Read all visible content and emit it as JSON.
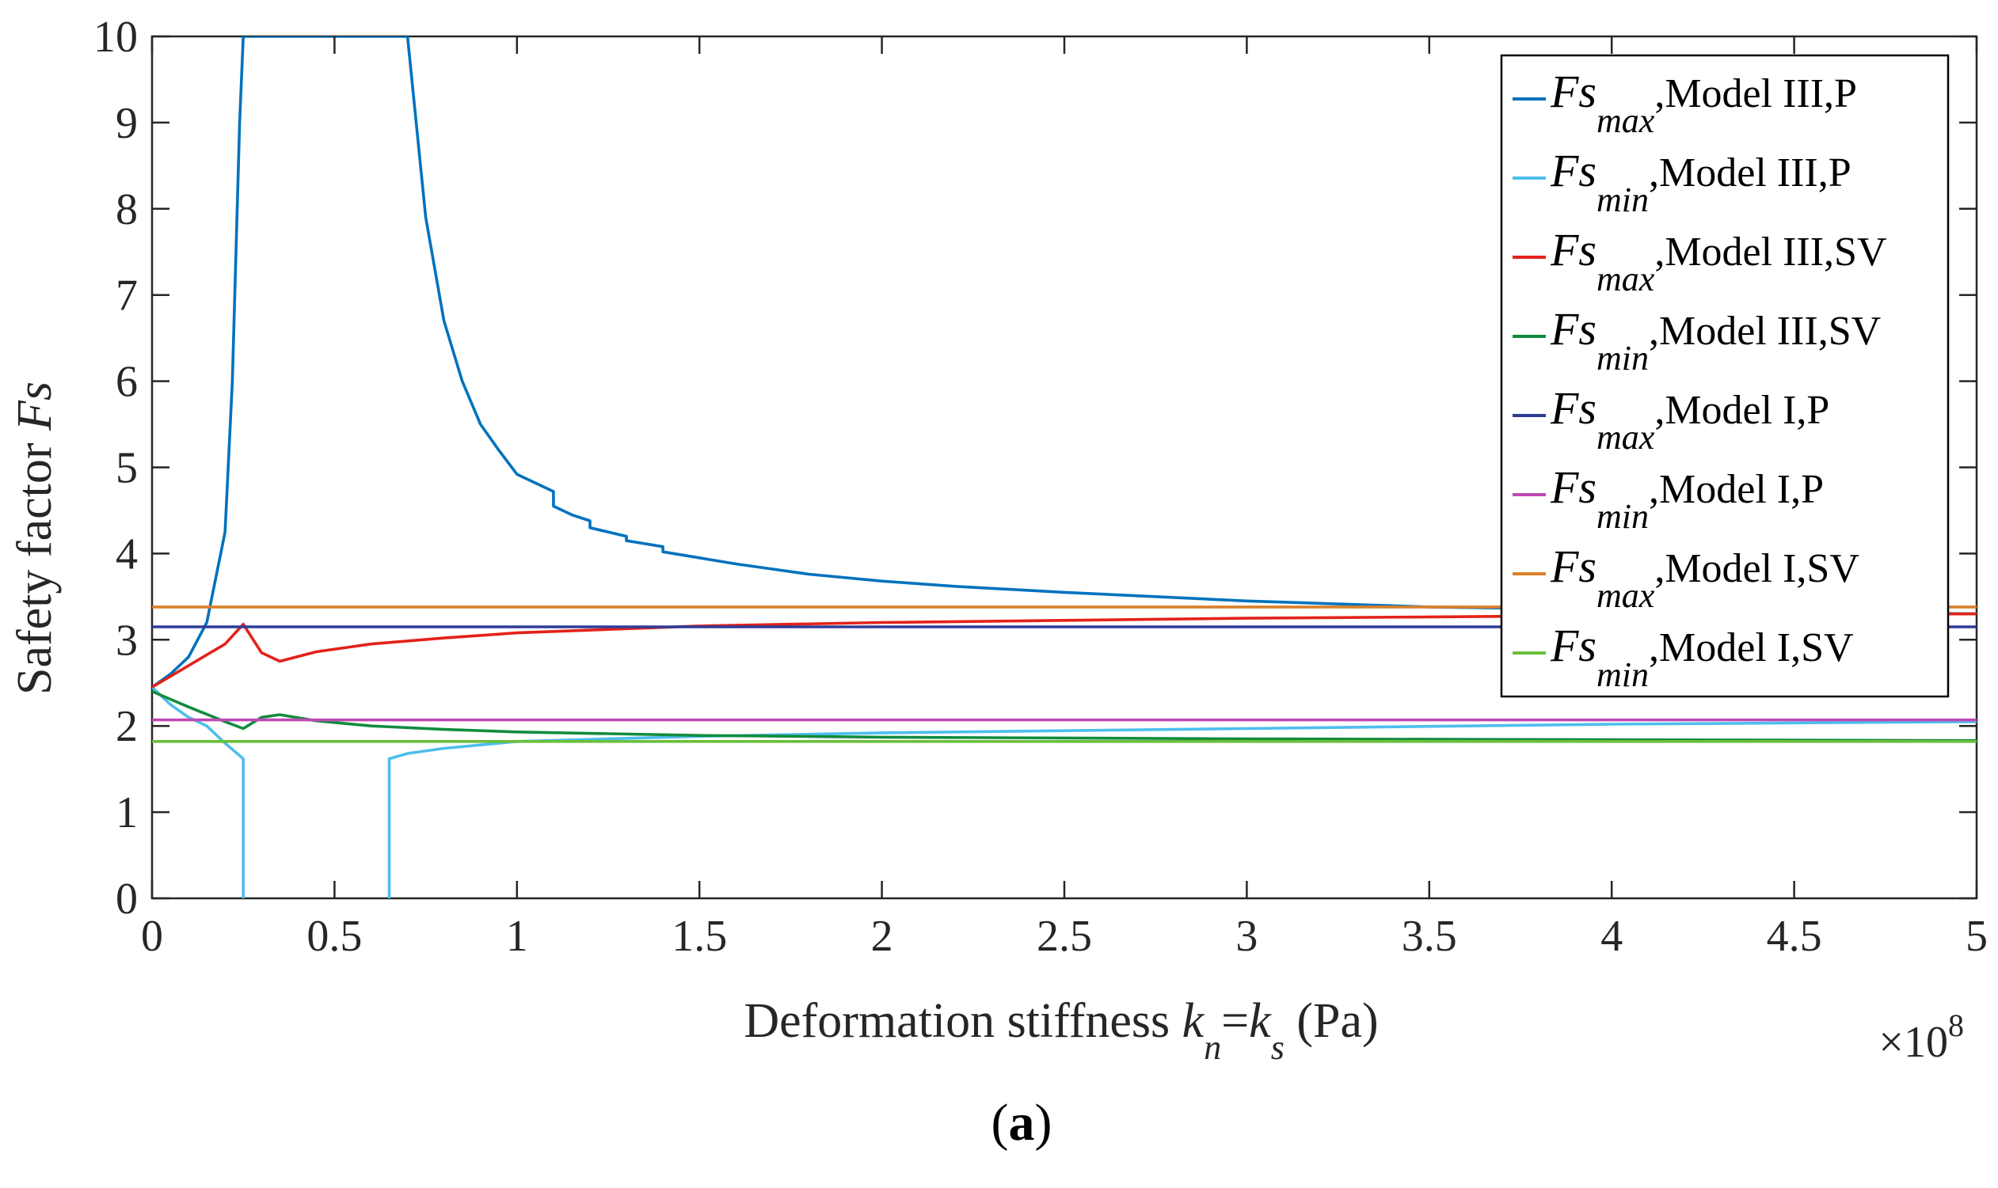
{
  "chart_data": {
    "type": "line",
    "title": "",
    "panel_label": {
      "open": "(",
      "letter": "a",
      "close": ")"
    },
    "xlabel": {
      "text": "Deformation stiffness ",
      "k1": "k",
      "sub1": "n",
      "eq": "=",
      "k2": "k",
      "sub2": "s",
      "unit": " (Pa)"
    },
    "ylabel": {
      "text": "Safety factor ",
      "var": "Fs"
    },
    "x_exponent": {
      "times": "×10",
      "power": "8"
    },
    "xlim": [
      0,
      5
    ],
    "ylim": [
      0,
      10
    ],
    "x_ticks": [
      0,
      0.5,
      1,
      1.5,
      2,
      2.5,
      3,
      3.5,
      4,
      4.5,
      5
    ],
    "x_tick_labels": [
      "0",
      "0.5",
      "1",
      "1.5",
      "2",
      "2.5",
      "3",
      "3.5",
      "4",
      "4.5",
      "5"
    ],
    "y_ticks": [
      0,
      1,
      2,
      3,
      4,
      5,
      6,
      7,
      8,
      9,
      10
    ],
    "y_tick_labels": [
      "0",
      "1",
      "2",
      "3",
      "4",
      "5",
      "6",
      "7",
      "8",
      "9",
      "10"
    ],
    "grid": false,
    "legend_position": "top-right",
    "series": [
      {
        "name": "Fs_max,Model III,P",
        "legend": {
          "var": "Fs",
          "sub": "max",
          "rest": ",Model III,P"
        },
        "color": "#0072BD",
        "x": [
          0,
          0.05,
          0.1,
          0.15,
          0.2,
          0.22,
          0.24,
          0.25,
          0.7,
          0.75,
          0.8,
          0.85,
          0.9,
          0.95,
          1.0,
          1.05,
          1.1,
          1.1,
          1.15,
          1.2,
          1.2,
          1.3,
          1.3,
          1.4,
          1.4,
          1.5,
          1.6,
          1.7,
          1.8,
          2.0,
          2.2,
          2.5,
          3.0,
          3.5,
          4.0,
          4.5,
          5.0
        ],
        "y": [
          2.45,
          2.6,
          2.8,
          3.2,
          4.25,
          6.0,
          9.0,
          10.0,
          10.0,
          7.9,
          6.7,
          6.0,
          5.5,
          5.2,
          4.92,
          4.82,
          4.72,
          4.55,
          4.45,
          4.38,
          4.3,
          4.2,
          4.15,
          4.08,
          4.02,
          3.95,
          3.88,
          3.82,
          3.76,
          3.68,
          3.62,
          3.55,
          3.45,
          3.38,
          3.35,
          3.32,
          3.3
        ]
      },
      {
        "name": "Fs_min,Model III,P",
        "legend": {
          "var": "Fs",
          "sub": "min",
          "rest": ",Model III,P"
        },
        "color": "#4DBEEE",
        "x": [
          0,
          0.05,
          0.1,
          0.15,
          0.2,
          0.25,
          0.25,
          null,
          0.65,
          0.65,
          0.7,
          0.8,
          0.9,
          1.0,
          1.5,
          2.0,
          3.0,
          4.0,
          5.0
        ],
        "y": [
          2.45,
          2.25,
          2.1,
          2.0,
          1.8,
          1.62,
          0,
          null,
          0,
          1.62,
          1.68,
          1.74,
          1.78,
          1.82,
          1.88,
          1.92,
          1.97,
          2.02,
          2.05
        ]
      },
      {
        "name": "Fs_max,Model III,SV",
        "legend": {
          "var": "Fs",
          "sub": "max",
          "rest": ",Model III,SV"
        },
        "color": "#E32219",
        "x": [
          0,
          0.1,
          0.2,
          0.25,
          0.3,
          0.35,
          0.45,
          0.6,
          0.8,
          1.0,
          1.5,
          2.0,
          3.0,
          4.0,
          5.0
        ],
        "y": [
          2.45,
          2.7,
          2.95,
          3.18,
          2.85,
          2.75,
          2.86,
          2.95,
          3.02,
          3.08,
          3.16,
          3.2,
          3.25,
          3.28,
          3.3
        ]
      },
      {
        "name": "Fs_min,Model III,SV",
        "legend": {
          "var": "Fs",
          "sub": "min",
          "rest": ",Model III,SV"
        },
        "color": "#128C3E",
        "x": [
          0,
          0.1,
          0.2,
          0.25,
          0.3,
          0.35,
          0.45,
          0.6,
          0.8,
          1.0,
          1.5,
          2.0,
          3.0,
          4.0,
          5.0
        ],
        "y": [
          2.4,
          2.22,
          2.05,
          1.97,
          2.1,
          2.13,
          2.06,
          2.0,
          1.96,
          1.93,
          1.89,
          1.87,
          1.85,
          1.84,
          1.83
        ]
      },
      {
        "name": "Fs_max,Model I,P",
        "legend": {
          "var": "Fs",
          "sub": "max",
          "rest": ",Model I,P"
        },
        "color": "#2E3C98",
        "x": [
          0,
          5
        ],
        "y": [
          3.15,
          3.15
        ]
      },
      {
        "name": "Fs_min,Model I,P",
        "legend": {
          "var": "Fs",
          "sub": "min",
          "rest": ",Model I,P"
        },
        "color": "#C049B4",
        "x": [
          0,
          5
        ],
        "y": [
          2.07,
          2.07
        ]
      },
      {
        "name": "Fs_max,Model I,SV",
        "legend": {
          "var": "Fs",
          "sub": "max",
          "rest": ",Model I,SV"
        },
        "color": "#D9802A",
        "x": [
          0,
          5
        ],
        "y": [
          3.38,
          3.38
        ]
      },
      {
        "name": "Fs_min,Model I,SV",
        "legend": {
          "var": "Fs",
          "sub": "min",
          "rest": ",Model I,SV"
        },
        "color": "#6CBF3D",
        "x": [
          0,
          5
        ],
        "y": [
          1.82,
          1.82
        ]
      }
    ]
  }
}
